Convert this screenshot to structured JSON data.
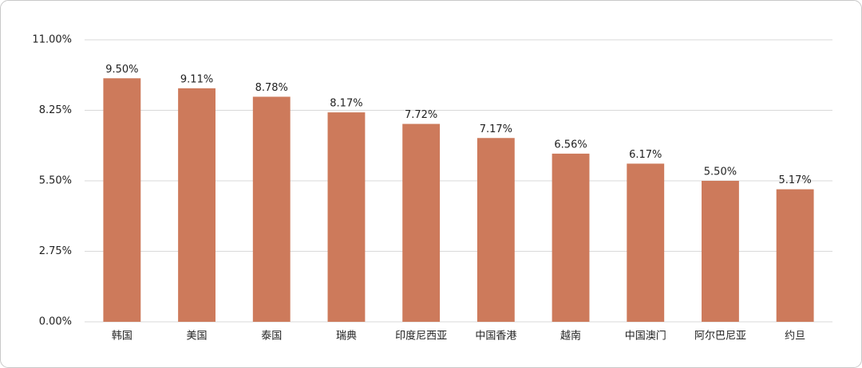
{
  "chart_data": {
    "type": "bar",
    "categories": [
      "韩国",
      "美国",
      "泰国",
      "瑞典",
      "印度尼西亚",
      "中国香港",
      "越南",
      "中国澳门",
      "阿尔巴尼亚",
      "约旦"
    ],
    "values": [
      9.5,
      9.11,
      8.78,
      8.17,
      7.72,
      7.17,
      6.56,
      6.17,
      5.5,
      5.17
    ],
    "value_labels": [
      "9.50%",
      "9.11%",
      "8.78%",
      "8.17%",
      "7.72%",
      "7.17%",
      "6.56%",
      "6.17%",
      "5.50%",
      "5.17%"
    ],
    "color": "#cd7a5b",
    "ylim": [
      0,
      11
    ],
    "yticks": [
      {
        "value": 0,
        "label": "0.00%"
      },
      {
        "value": 2.75,
        "label": "2.75%"
      },
      {
        "value": 5.5,
        "label": "5.50%"
      },
      {
        "value": 8.25,
        "label": "8.25%"
      },
      {
        "value": 11,
        "label": "11.00%"
      }
    ],
    "grid": true
  }
}
